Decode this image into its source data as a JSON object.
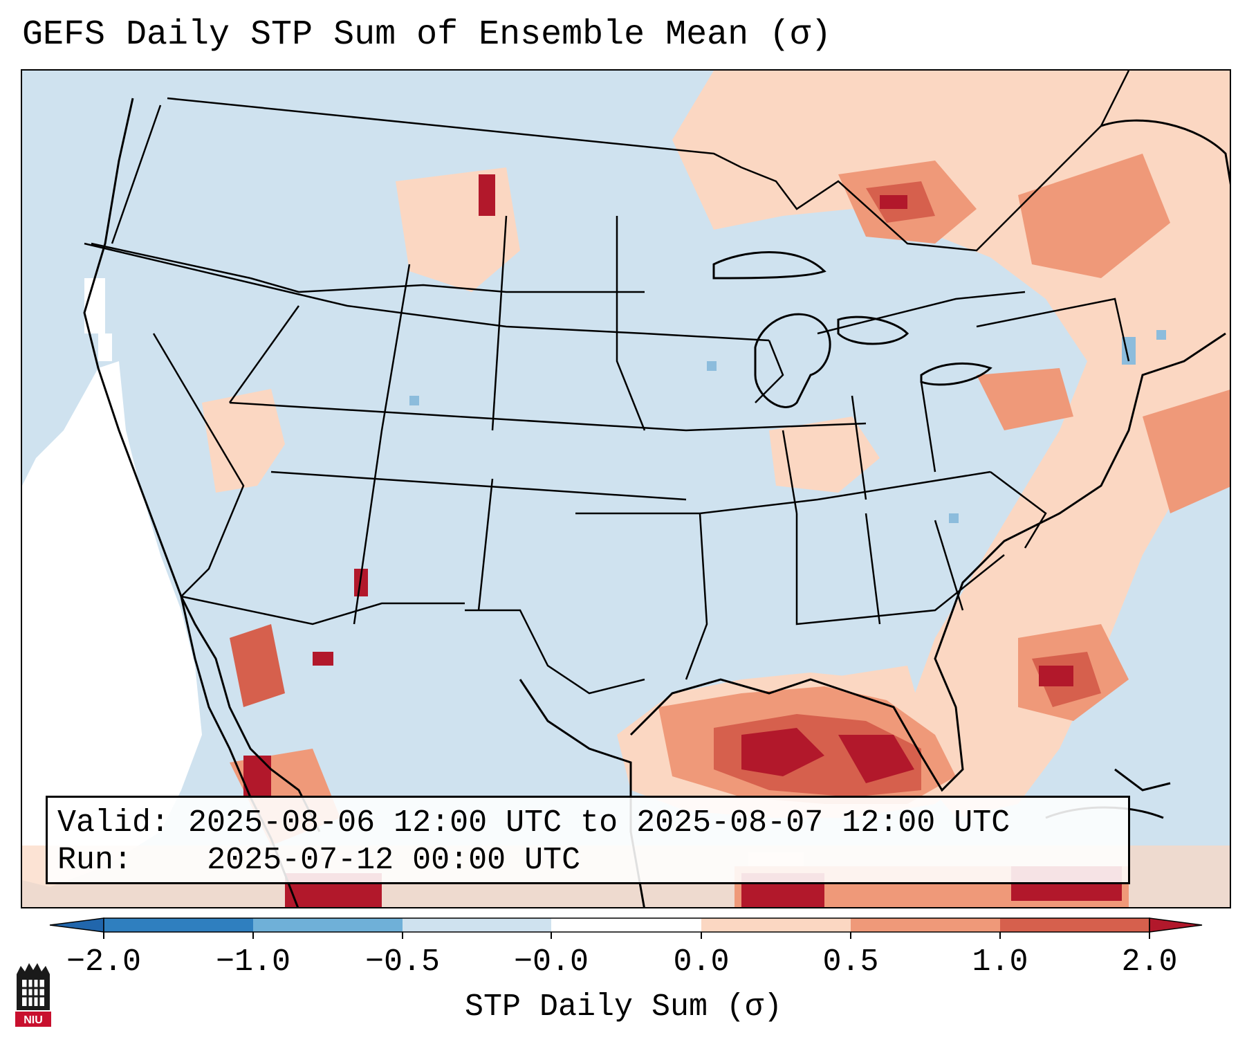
{
  "title": "GEFS Daily STP Sum of Ensemble Mean (σ)",
  "info": {
    "valid_label": "Valid:",
    "valid_value": "2025-08-06 12:00 UTC to 2025-08-07 12:00 UTC",
    "run_label": "Run:",
    "run_value": "2025-07-12 00:00 UTC"
  },
  "colorbar": {
    "label": "STP Daily Sum (σ)",
    "ticks": [
      "−2.0",
      "−1.0",
      "−0.5",
      "−0.0",
      "0.0",
      "0.5",
      "1.0",
      "2.0"
    ],
    "colors": [
      "#2f7fbf",
      "#6fb0d8",
      "#cfe2ef",
      "#ffffff",
      "#fbd7c2",
      "#ef9979",
      "#d6604d",
      "#b2182b"
    ]
  },
  "map": {
    "projection": "Lambert Conformal",
    "region": "CONUS",
    "features": [
      "state borders",
      "coastlines",
      "Great Lakes"
    ],
    "field": "STP daily sum standardized anomaly",
    "colors": {
      "ocean_land_background": "#cfe2ef",
      "neutral": "#ffffff",
      "light_positive": "#fbd7c2",
      "moderate_positive": "#ef9979",
      "strong_positive": "#d6604d",
      "extreme_positive": "#b2182b",
      "light_negative": "#8cbcdc",
      "strong_negative": "#4f95c7"
    }
  },
  "logo": {
    "icon": "niu-logo-icon",
    "text": "NIU"
  }
}
